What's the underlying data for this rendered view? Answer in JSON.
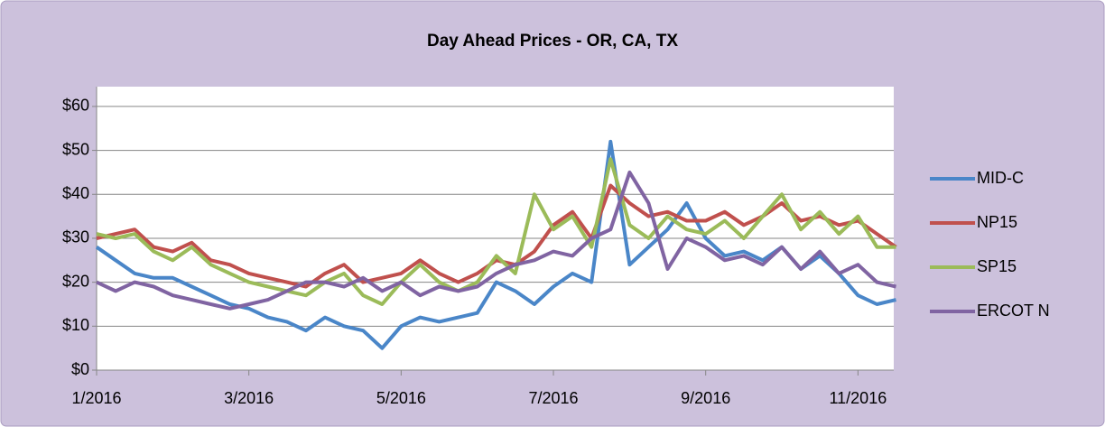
{
  "chart_data": {
    "type": "line",
    "title": "Day Ahead Prices  - OR, CA, TX",
    "x": [
      1,
      1.25,
      1.5,
      1.75,
      2,
      2.25,
      2.5,
      2.75,
      3,
      3.25,
      3.5,
      3.75,
      4,
      4.25,
      4.5,
      4.75,
      5,
      5.25,
      5.5,
      5.75,
      6,
      6.25,
      6.5,
      6.75,
      7,
      7.25,
      7.5,
      7.75,
      8,
      8.25,
      8.5,
      8.75,
      9,
      9.25,
      9.5,
      9.75,
      10,
      10.25,
      10.5,
      10.75,
      11,
      11.25,
      11.5
    ],
    "series": [
      {
        "name": "MID-C",
        "color": "#4a86c8",
        "values": [
          28,
          25,
          22,
          21,
          21,
          19,
          17,
          15,
          14,
          12,
          11,
          9,
          12,
          10,
          9,
          5,
          10,
          12,
          11,
          12,
          13,
          20,
          18,
          15,
          19,
          22,
          20,
          52,
          24,
          28,
          32,
          38,
          30,
          26,
          27,
          25,
          28,
          23,
          26,
          22,
          17,
          15,
          16
        ]
      },
      {
        "name": "NP15",
        "color": "#c0504d",
        "values": [
          30,
          31,
          32,
          28,
          27,
          29,
          25,
          24,
          22,
          21,
          20,
          19,
          22,
          24,
          20,
          21,
          22,
          25,
          22,
          20,
          22,
          25,
          24,
          27,
          33,
          36,
          30,
          42,
          38,
          35,
          36,
          34,
          34,
          36,
          33,
          35,
          38,
          34,
          35,
          33,
          34,
          31,
          28
        ]
      },
      {
        "name": "SP15",
        "color": "#9bbb59",
        "values": [
          31,
          30,
          31,
          27,
          25,
          28,
          24,
          22,
          20,
          19,
          18,
          17,
          20,
          22,
          17,
          15,
          20,
          24,
          20,
          18,
          20,
          26,
          22,
          40,
          32,
          35,
          28,
          48,
          33,
          30,
          35,
          32,
          31,
          34,
          30,
          35,
          40,
          32,
          36,
          31,
          35,
          28,
          28
        ]
      },
      {
        "name": "ERCOT N",
        "color": "#8064a2",
        "values": [
          20,
          18,
          20,
          19,
          17,
          16,
          15,
          14,
          15,
          16,
          18,
          20,
          20,
          19,
          21,
          18,
          20,
          17,
          19,
          18,
          19,
          22,
          24,
          25,
          27,
          26,
          30,
          32,
          45,
          38,
          23,
          30,
          28,
          25,
          26,
          24,
          28,
          23,
          27,
          22,
          24,
          20,
          19
        ]
      }
    ],
    "xlim": [
      1,
      11.47
    ],
    "xticks": [
      {
        "value": 1,
        "label": "1/2016"
      },
      {
        "value": 3,
        "label": "3/2016"
      },
      {
        "value": 5,
        "label": "5/2016"
      },
      {
        "value": 7,
        "label": "7/2016"
      },
      {
        "value": 9,
        "label": "9/2016"
      },
      {
        "value": 11,
        "label": "11/2016"
      }
    ],
    "ylim": [
      0,
      64.5
    ],
    "yticks": [
      {
        "value": 0,
        "label": "$0"
      },
      {
        "value": 10,
        "label": "$10"
      },
      {
        "value": 20,
        "label": "$20"
      },
      {
        "value": 30,
        "label": "$30"
      },
      {
        "value": 40,
        "label": "$40"
      },
      {
        "value": 50,
        "label": "$50"
      },
      {
        "value": 60,
        "label": "$60"
      }
    ],
    "grid": true,
    "legend": "right"
  }
}
